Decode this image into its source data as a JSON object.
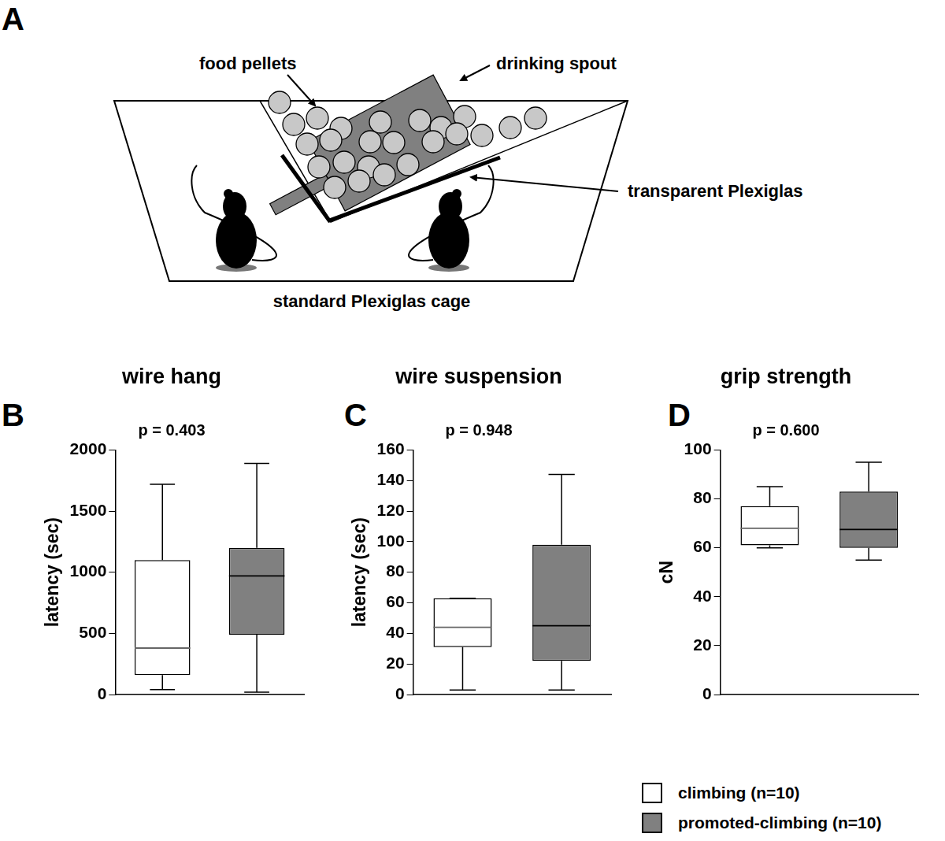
{
  "diagram": {
    "panel": "A",
    "labels": {
      "food_pellets": "food pellets",
      "drinking_spout": "drinking spout",
      "plexiglas": "transparent Plexiglas",
      "cage": "standard Plexiglas cage"
    }
  },
  "chart_data": [
    {
      "type": "box",
      "panel": "B",
      "title": "wire hang",
      "annotation": "p = 0.403",
      "y_label": "latency (sec)",
      "ylim": [
        0,
        2000
      ],
      "yticks": [
        0,
        500,
        1000,
        1500,
        2000
      ],
      "grid": false,
      "tick_labels": "y",
      "series": [
        {
          "name": "climbing (n=10)",
          "color": "#ffffff",
          "values": {
            "min": 40,
            "q1": 160,
            "median": 380,
            "q3": 1100,
            "max": 1720
          }
        },
        {
          "name": "promoted-climbing (n=10)",
          "color": "#808080",
          "values": {
            "min": 20,
            "q1": 490,
            "median": 970,
            "q3": 1200,
            "max": 1890
          }
        }
      ]
    },
    {
      "type": "box",
      "panel": "C",
      "title": "wire suspension",
      "annotation": "p = 0.948",
      "y_label": "latency (sec)",
      "ylim": [
        0,
        160
      ],
      "yticks": [
        0,
        20,
        40,
        60,
        80,
        100,
        120,
        140,
        160
      ],
      "grid": false,
      "tick_labels": "y",
      "series": [
        {
          "name": "climbing (n=10)",
          "color": "#ffffff",
          "values": {
            "min": 3,
            "q1": 31,
            "median": 44,
            "q3": 63,
            "max": 63
          }
        },
        {
          "name": "promoted-climbing (n=10)",
          "color": "#808080",
          "values": {
            "min": 3,
            "q1": 22,
            "median": 45,
            "q3": 98,
            "max": 144
          }
        }
      ]
    },
    {
      "type": "box",
      "panel": "D",
      "title": "grip strength",
      "annotation": "p = 0.600",
      "y_label": "cN",
      "ylim": [
        0,
        100
      ],
      "yticks": [
        0,
        20,
        40,
        60,
        80,
        100
      ],
      "grid": false,
      "tick_labels": "y",
      "series": [
        {
          "name": "climbing (n=10)",
          "color": "#ffffff",
          "values": {
            "min": 60,
            "q1": 61,
            "median": 68,
            "q3": 77,
            "max": 85
          }
        },
        {
          "name": "promoted-climbing (n=10)",
          "color": "#808080",
          "values": {
            "min": 55,
            "q1": 60,
            "median": 67.5,
            "q3": 83,
            "max": 95
          }
        }
      ]
    }
  ]
}
